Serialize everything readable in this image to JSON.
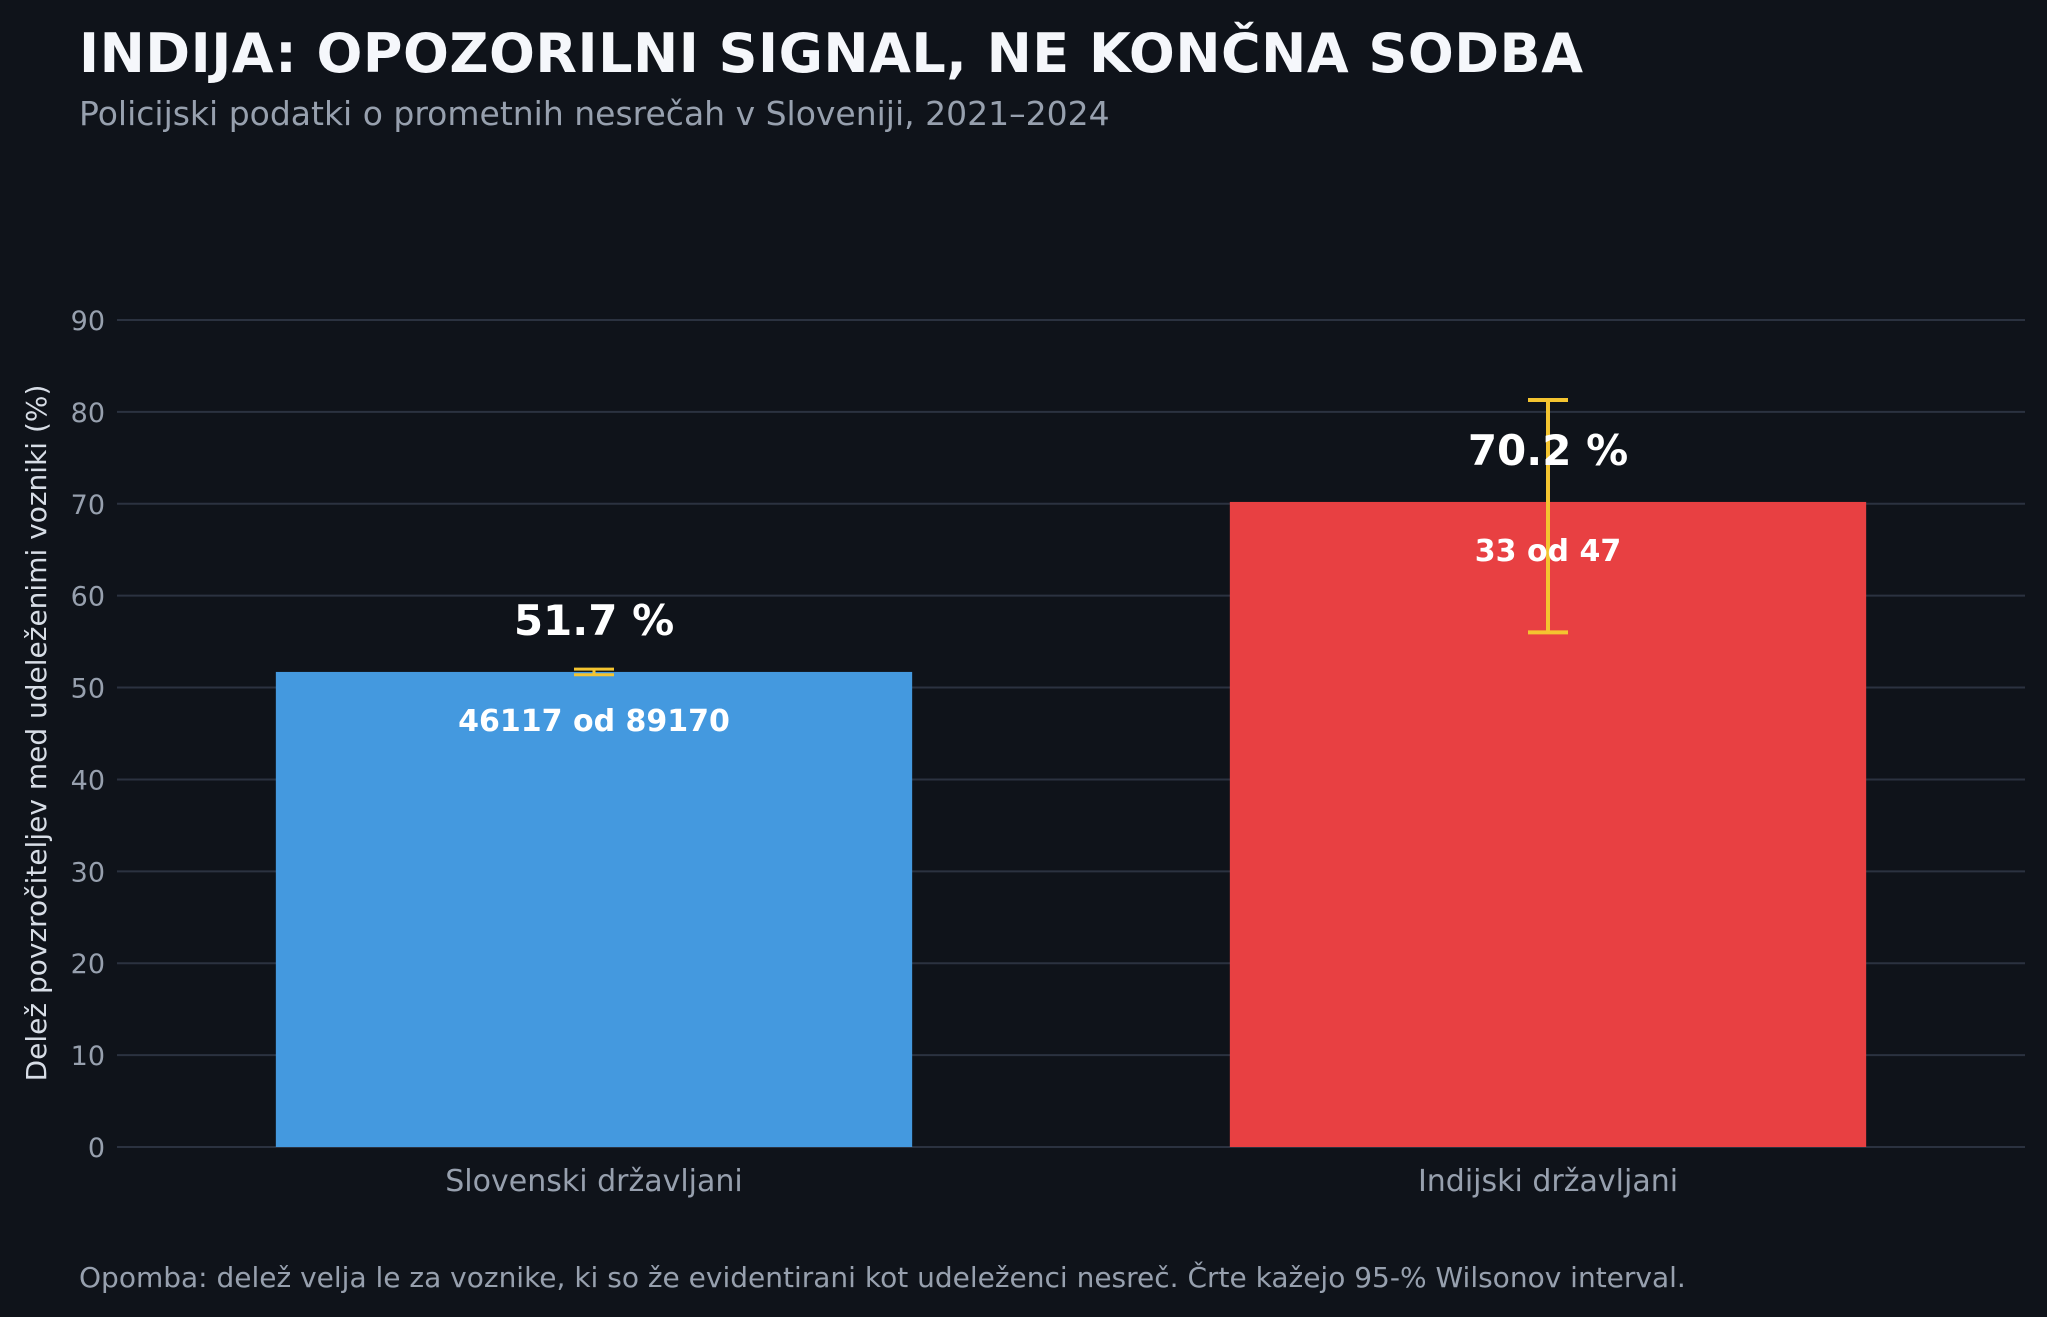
{
  "chart_data": {
    "type": "bar",
    "title": "INDIJA: OPOZORILNI SIGNAL, NE KONČNA SODBA",
    "subtitle": "Policijski podatki o prometnih nesrečah v Sloveniji, 2021–2024",
    "xlabel": "",
    "ylabel": "Delež povzročiteljev med udeleženimi vozniki (%)",
    "ylim": [
      0,
      90
    ],
    "yticks": [
      0,
      10,
      20,
      30,
      40,
      50,
      60,
      70,
      80,
      90
    ],
    "grid": true,
    "categories": [
      "Slovenski državljani",
      "Indijski državljani"
    ],
    "values": [
      51.7,
      70.2
    ],
    "value_labels": [
      "51.7 %",
      "70.2 %"
    ],
    "count_labels": [
      "46117 od 89170",
      "33 od 47"
    ],
    "error_intervals": [
      [
        51.4,
        52.0
      ],
      [
        56.0,
        81.3
      ]
    ],
    "footnote": "Opomba: delež velja le za voznike, ki so že evidentirani kot udeleženci nesreč. Črte kažejo 95-% Wilsonov interval."
  },
  "colors": {
    "background": "#0f131a",
    "grid": "#2b3240",
    "axis_text": "#97a0ae",
    "title": "#f5f7fb",
    "value_text": "#ffffff",
    "error_bar": "#f4c430",
    "bars": [
      "#4499df",
      "#e84042"
    ]
  }
}
